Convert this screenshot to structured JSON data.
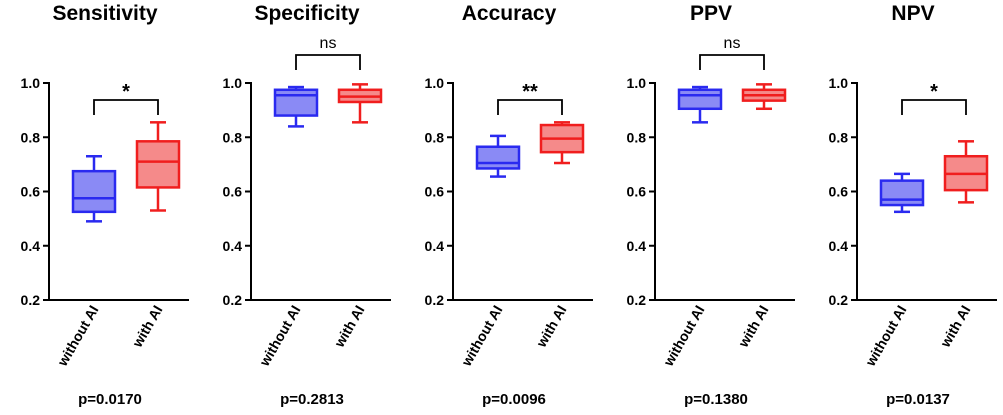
{
  "figure": {
    "colors": {
      "without_ai": "#2a2af0",
      "with_ai": "#f01e1e",
      "without_ai_fill": "#8a8af5",
      "with_ai_fill": "#f58a8a",
      "axis": "#000000"
    },
    "y_ticks": [
      "0.2",
      "0.4",
      "0.6",
      "0.8",
      "1.0"
    ]
  },
  "chart_data": [
    {
      "type": "box",
      "title": "Sensitivity",
      "categories": [
        "without AI",
        "with AI"
      ],
      "ylim": [
        0.2,
        1.0
      ],
      "boxes": [
        {
          "min": 0.49,
          "q1": 0.525,
          "median": 0.575,
          "q3": 0.675,
          "max": 0.73
        },
        {
          "min": 0.53,
          "q1": 0.615,
          "median": 0.71,
          "q3": 0.785,
          "max": 0.855
        }
      ],
      "significance": "*",
      "p_value": "p=0.0170"
    },
    {
      "type": "box",
      "title": "Specificity",
      "categories": [
        "without AI",
        "with AI"
      ],
      "ylim": [
        0.2,
        1.0
      ],
      "boxes": [
        {
          "min": 0.84,
          "q1": 0.88,
          "median": 0.955,
          "q3": 0.975,
          "max": 0.985
        },
        {
          "min": 0.855,
          "q1": 0.93,
          "median": 0.95,
          "q3": 0.975,
          "max": 0.995
        }
      ],
      "significance": "ns",
      "p_value": "p=0.2813"
    },
    {
      "type": "box",
      "title": "Accuracy",
      "categories": [
        "without AI",
        "with AI"
      ],
      "ylim": [
        0.2,
        1.0
      ],
      "boxes": [
        {
          "min": 0.655,
          "q1": 0.685,
          "median": 0.705,
          "q3": 0.765,
          "max": 0.805
        },
        {
          "min": 0.705,
          "q1": 0.745,
          "median": 0.795,
          "q3": 0.845,
          "max": 0.855
        }
      ],
      "significance": "**",
      "p_value": "p=0.0096"
    },
    {
      "type": "box",
      "title": "PPV",
      "categories": [
        "without AI",
        "with AI"
      ],
      "ylim": [
        0.2,
        1.0
      ],
      "boxes": [
        {
          "min": 0.855,
          "q1": 0.905,
          "median": 0.955,
          "q3": 0.975,
          "max": 0.985
        },
        {
          "min": 0.905,
          "q1": 0.935,
          "median": 0.955,
          "q3": 0.975,
          "max": 0.995
        }
      ],
      "significance": "ns",
      "p_value": "p=0.1380"
    },
    {
      "type": "box",
      "title": "NPV",
      "categories": [
        "without AI",
        "with AI"
      ],
      "ylim": [
        0.2,
        1.0
      ],
      "boxes": [
        {
          "min": 0.525,
          "q1": 0.55,
          "median": 0.57,
          "q3": 0.64,
          "max": 0.665
        },
        {
          "min": 0.56,
          "q1": 0.605,
          "median": 0.665,
          "q3": 0.73,
          "max": 0.785
        }
      ],
      "significance": "*",
      "p_value": "p=0.0137"
    }
  ]
}
